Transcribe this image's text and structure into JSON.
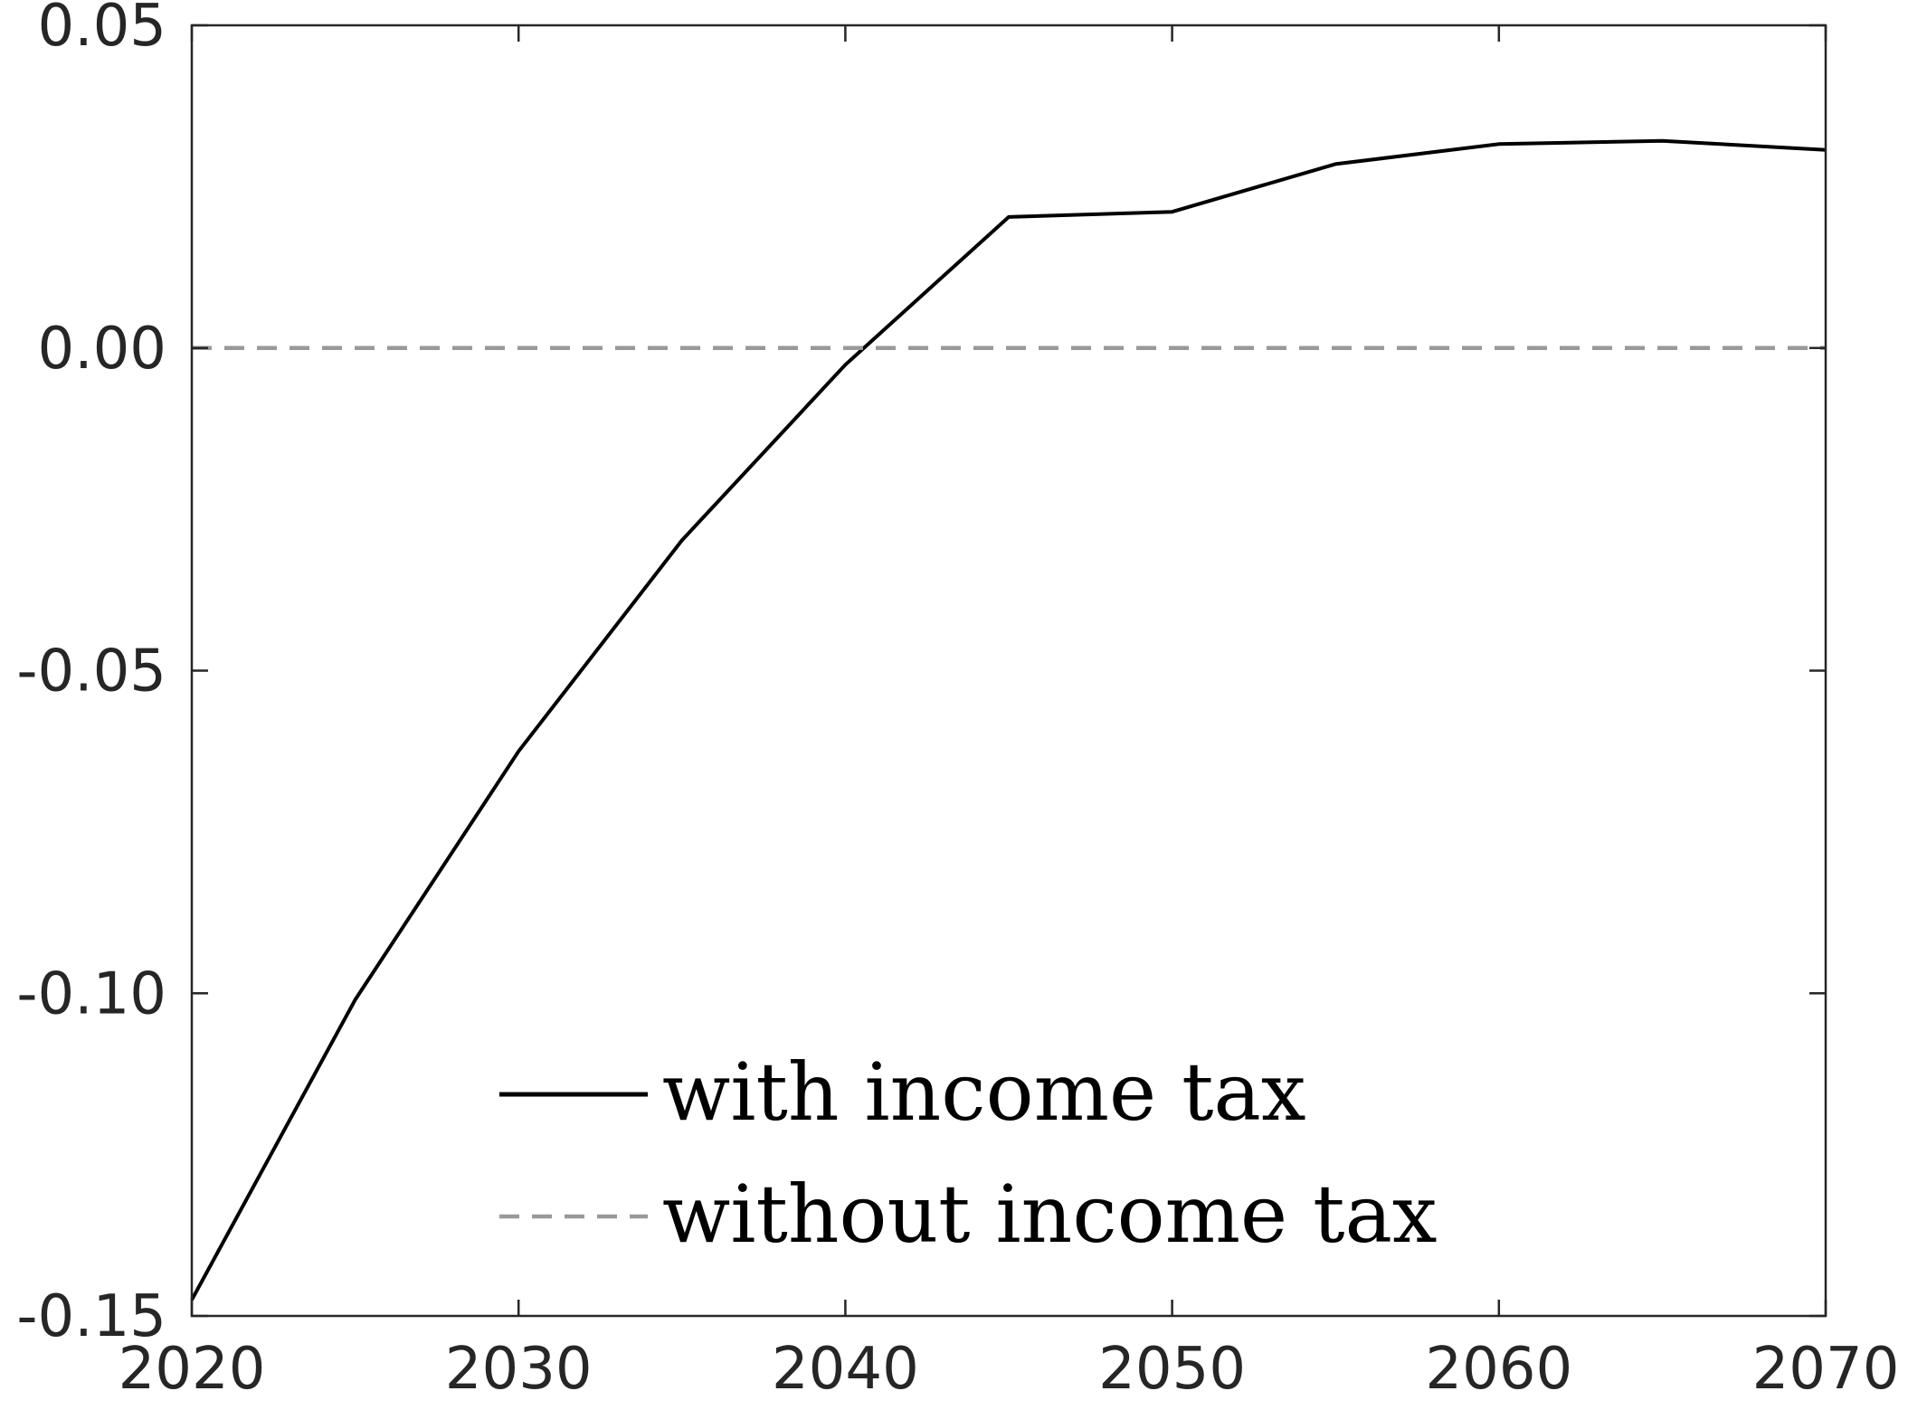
{
  "chart_data": {
    "type": "line",
    "title": "",
    "xlabel": "",
    "ylabel": "",
    "xlim": [
      2020,
      2070
    ],
    "ylim": [
      -0.15,
      0.05
    ],
    "x_ticks": [
      2020,
      2030,
      2040,
      2050,
      2060,
      2070
    ],
    "x_tick_labels": [
      "2020",
      "2030",
      "2040",
      "2050",
      "2060",
      "2070"
    ],
    "y_ticks": [
      -0.15,
      -0.1,
      -0.05,
      0.0,
      0.05
    ],
    "y_tick_labels": [
      "-0.15",
      "-0.10",
      "-0.05",
      "0.00",
      "0.05"
    ],
    "grid": false,
    "legend_position": "bottom-center",
    "series": [
      {
        "name": "with income tax",
        "color": "#000000",
        "style": "solid",
        "x": [
          2020,
          2025,
          2030,
          2035,
          2040,
          2045,
          2050,
          2055,
          2060,
          2065,
          2070
        ],
        "y": [
          -0.1475,
          -0.101,
          -0.0625,
          -0.0298,
          -0.0026,
          0.0203,
          0.0211,
          0.0285,
          0.0316,
          0.0321,
          0.0307
        ]
      },
      {
        "name": "without income tax",
        "color": "#999999",
        "style": "dashed",
        "x": [
          2020,
          2070
        ],
        "y": [
          0.0,
          0.0
        ]
      }
    ]
  }
}
